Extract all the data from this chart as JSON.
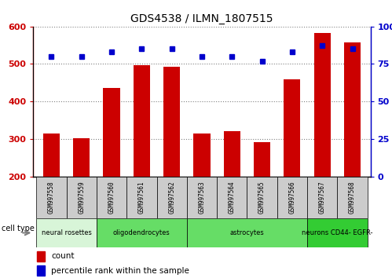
{
  "title": "GDS4538 / ILMN_1807515",
  "samples": [
    "GSM997558",
    "GSM997559",
    "GSM997560",
    "GSM997561",
    "GSM997562",
    "GSM997563",
    "GSM997564",
    "GSM997565",
    "GSM997566",
    "GSM997567",
    "GSM997568"
  ],
  "counts": [
    315,
    302,
    435,
    497,
    493,
    315,
    320,
    291,
    460,
    582,
    558
  ],
  "percentile_ranks": [
    80,
    80,
    83,
    85,
    85,
    80,
    80,
    77,
    83,
    87,
    85
  ],
  "cell_groups": [
    {
      "label": "neural rosettes",
      "start": 0,
      "end": 2,
      "color": "#d8f5d8"
    },
    {
      "label": "oligodendrocytes",
      "start": 2,
      "end": 5,
      "color": "#66dd66"
    },
    {
      "label": "astrocytes",
      "start": 5,
      "end": 9,
      "color": "#66dd66"
    },
    {
      "label": "neurons CD44- EGFR-",
      "start": 9,
      "end": 11,
      "color": "#33cc33"
    }
  ],
  "ylim_left": [
    200,
    600
  ],
  "ylim_right": [
    0,
    100
  ],
  "yticks_left": [
    200,
    300,
    400,
    500,
    600
  ],
  "yticks_right": [
    0,
    25,
    50,
    75,
    100
  ],
  "bar_color": "#cc0000",
  "dot_color": "#0000cc",
  "bar_bottom": 200,
  "tick_label_bg": "#cccccc",
  "left_axis_color": "#cc0000",
  "right_axis_color": "#0000cc",
  "figure_width": 4.99,
  "figure_height": 3.54,
  "figure_dpi": 100
}
